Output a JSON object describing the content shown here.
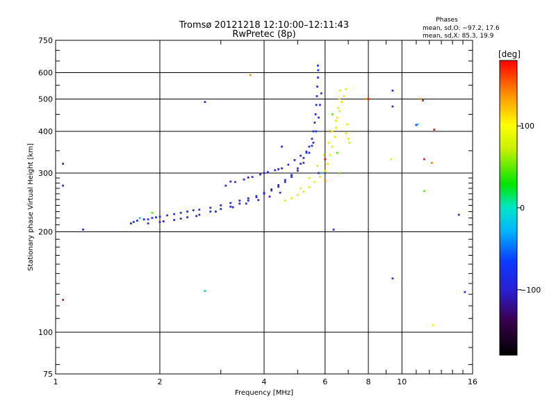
{
  "chart_data": {
    "type": "scatter",
    "title": "Tromsø 20121218 12:10:00–12:11:43",
    "subtitle": "RwPretec (8p)",
    "xlabel": "Frequency [MHz]",
    "ylabel": "Stationary phase Virtual Height [km]",
    "x_scale": "log",
    "y_scale": "log",
    "xlim": [
      1,
      16
    ],
    "ylim": [
      75,
      750
    ],
    "x_ticks": [
      1,
      2,
      4,
      6,
      8,
      10,
      16
    ],
    "y_ticks": [
      75,
      100,
      200,
      300,
      400,
      500,
      600,
      750
    ],
    "grid": true,
    "phase_info": {
      "title": "Phases",
      "line_o": "mean, sd,O: −97.2, 17.6",
      "line_x": "mean, sd,X:  85.3, 19.9"
    },
    "colorbar": {
      "label": "[deg]",
      "ticks": [
        "100",
        "0",
        "−100"
      ],
      "range": [
        -180,
        180
      ]
    },
    "series": [
      {
        "mode": "O",
        "phase_deg": -97,
        "color": "#2a2ff0",
        "points": [
          [
            1.65,
            212
          ],
          [
            1.68,
            214
          ],
          [
            1.72,
            216
          ],
          [
            1.8,
            218
          ],
          [
            1.85,
            218
          ],
          [
            1.9,
            220
          ],
          [
            1.95,
            221
          ],
          [
            2.0,
            222
          ],
          [
            2.1,
            224
          ],
          [
            2.2,
            226
          ],
          [
            2.3,
            228
          ],
          [
            2.4,
            230
          ],
          [
            2.5,
            232
          ],
          [
            2.6,
            233
          ],
          [
            2.8,
            236
          ],
          [
            3.0,
            240
          ],
          [
            3.2,
            244
          ],
          [
            3.4,
            248
          ],
          [
            3.6,
            252
          ],
          [
            3.8,
            256
          ],
          [
            4.0,
            262
          ],
          [
            4.2,
            268
          ],
          [
            4.4,
            276
          ],
          [
            4.6,
            286
          ],
          [
            4.8,
            296
          ],
          [
            5.0,
            310
          ],
          [
            5.1,
            320
          ],
          [
            5.2,
            333
          ],
          [
            5.3,
            345
          ],
          [
            5.4,
            360
          ],
          [
            5.5,
            380
          ],
          [
            5.55,
            400
          ],
          [
            5.6,
            425
          ],
          [
            5.63,
            450
          ],
          [
            5.66,
            480
          ],
          [
            5.68,
            510
          ],
          [
            5.7,
            545
          ],
          [
            5.72,
            580
          ],
          [
            5.73,
            610
          ],
          [
            5.72,
            630
          ],
          [
            1.85,
            212
          ],
          [
            2.0,
            214
          ],
          [
            2.2,
            217
          ],
          [
            2.4,
            221
          ],
          [
            2.6,
            225
          ],
          [
            2.8,
            230
          ],
          [
            3.0,
            234
          ],
          [
            3.2,
            238
          ],
          [
            3.4,
            243
          ],
          [
            3.6,
            248
          ],
          [
            3.8,
            254
          ],
          [
            4.0,
            260
          ],
          [
            4.2,
            266
          ],
          [
            4.4,
            273
          ],
          [
            4.6,
            282
          ],
          [
            4.8,
            292
          ],
          [
            5.0,
            305
          ],
          [
            5.2,
            322
          ],
          [
            5.4,
            345
          ],
          [
            5.55,
            370
          ],
          [
            5.65,
            400
          ],
          [
            5.75,
            440
          ],
          [
            5.8,
            480
          ],
          [
            5.85,
            520
          ],
          [
            3.1,
            275
          ],
          [
            3.3,
            282
          ],
          [
            3.5,
            287
          ],
          [
            3.7,
            292
          ],
          [
            3.9,
            297
          ],
          [
            4.1,
            302
          ],
          [
            4.3,
            306
          ],
          [
            4.5,
            310
          ],
          [
            4.7,
            318
          ],
          [
            4.9,
            328
          ],
          [
            5.1,
            338
          ],
          [
            5.3,
            348
          ],
          [
            5.5,
            362
          ],
          [
            1.05,
            320
          ],
          [
            1.05,
            275
          ],
          [
            1.2,
            203
          ],
          [
            2.7,
            490
          ],
          [
            4.5,
            360
          ],
          [
            5.75,
            300
          ],
          [
            6.35,
            203
          ],
          [
            9.4,
            530
          ],
          [
            9.4,
            475
          ],
          [
            9.4,
            145
          ],
          [
            15.2,
            132
          ],
          [
            11.0,
            418
          ]
        ]
      },
      {
        "mode": "O-violet",
        "phase_deg": -120,
        "color": "#4b1eb4",
        "points": [
          [
            2.05,
            215
          ],
          [
            2.3,
            219
          ],
          [
            2.55,
            223
          ],
          [
            2.9,
            230
          ],
          [
            3.25,
            237
          ],
          [
            3.55,
            243
          ],
          [
            3.85,
            249
          ],
          [
            4.15,
            255
          ],
          [
            4.45,
            262
          ],
          [
            3.2,
            283
          ],
          [
            3.6,
            291
          ],
          [
            4.0,
            300
          ],
          [
            4.4,
            308
          ],
          [
            14.6,
            225
          ]
        ]
      },
      {
        "mode": "X",
        "phase_deg": 85,
        "color": "#e8f000",
        "points": [
          [
            4.6,
            248
          ],
          [
            4.8,
            252
          ],
          [
            5.0,
            258
          ],
          [
            5.2,
            264
          ],
          [
            5.4,
            272
          ],
          [
            5.6,
            282
          ],
          [
            5.8,
            292
          ],
          [
            6.0,
            305
          ],
          [
            6.1,
            320
          ],
          [
            6.2,
            340
          ],
          [
            6.3,
            360
          ],
          [
            6.4,
            385
          ],
          [
            6.45,
            410
          ],
          [
            6.5,
            440
          ],
          [
            6.55,
            470
          ],
          [
            6.6,
            500
          ],
          [
            6.62,
            530
          ],
          [
            5.1,
            270
          ],
          [
            5.4,
            290
          ],
          [
            5.7,
            315
          ],
          [
            5.95,
            340
          ],
          [
            6.15,
            370
          ],
          [
            6.3,
            400
          ],
          [
            6.45,
            430
          ],
          [
            6.6,
            460
          ],
          [
            6.7,
            490
          ],
          [
            6.8,
            510
          ],
          [
            6.9,
            535
          ],
          [
            6.95,
            420
          ],
          [
            6.9,
            395
          ],
          [
            7.0,
            380
          ],
          [
            7.05,
            370
          ],
          [
            9.3,
            330
          ],
          [
            12.3,
            105
          ]
        ]
      },
      {
        "mode": "X-green",
        "phase_deg": 45,
        "color": "#5af000",
        "points": [
          [
            6.3,
            450
          ],
          [
            6.5,
            345
          ],
          [
            6.6,
            300
          ],
          [
            11.6,
            265
          ],
          [
            1.9,
            228
          ]
        ]
      },
      {
        "mode": "X-orange",
        "phase_deg": 140,
        "color": "#f09000",
        "points": [
          [
            3.65,
            590
          ],
          [
            7.9,
            500
          ],
          [
            11.3,
            500
          ],
          [
            12.2,
            322
          ],
          [
            6.2,
            400
          ],
          [
            6.0,
            285
          ]
        ]
      },
      {
        "mode": "red",
        "phase_deg": 175,
        "color": "#e11e1e",
        "points": [
          [
            1.05,
            125
          ],
          [
            11.6,
            330
          ],
          [
            12.4,
            405
          ],
          [
            8.0,
            500
          ],
          [
            11.5,
            495
          ],
          [
            6.0,
            330
          ]
        ]
      },
      {
        "mode": "cyan",
        "phase_deg": -40,
        "color": "#19c3e6",
        "points": [
          [
            2.7,
            133
          ],
          [
            5.85,
            300
          ],
          [
            1.75,
            220
          ],
          [
            11.1,
            420
          ]
        ]
      }
    ]
  }
}
